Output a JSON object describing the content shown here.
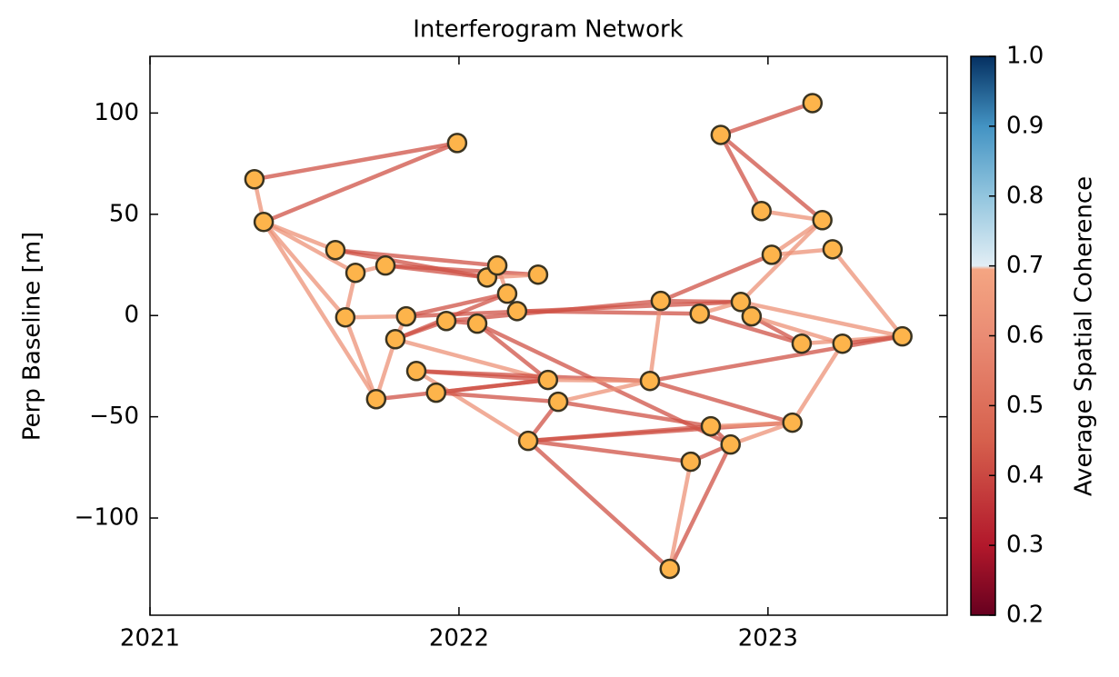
{
  "chart_data": {
    "type": "network",
    "title": "Interferogram Network",
    "y_label": "Perp Baseline [m]",
    "xlim": [
      2021,
      2023.58
    ],
    "ylim": [
      -148,
      128
    ],
    "xticks": [
      2021,
      2022,
      2023
    ],
    "yticks": [
      {
        "value": -100,
        "label": "−100"
      },
      {
        "value": -50,
        "label": "−50"
      },
      0,
      50,
      100
    ],
    "node_color": "#fdb44b",
    "nodes": {
      "x": [
        2021.338,
        2021.368,
        2021.994,
        2021.6,
        2021.665,
        2021.762,
        2021.632,
        2021.829,
        2021.794,
        2021.732,
        2021.862,
        2021.926,
        2021.959,
        2022.059,
        2022.091,
        2022.124,
        2022.156,
        2022.188,
        2022.256,
        2022.288,
        2022.321,
        2022.224,
        2022.653,
        2022.618,
        2022.779,
        2022.847,
        2022.979,
        2023.012,
        2022.912,
        2022.947,
        2023.144,
        2023.176,
        2023.209,
        2023.109,
        2023.241,
        2023.435,
        2023.079,
        2022.815,
        2022.879,
        2022.75,
        2022.682
      ],
      "y": [
        67.3,
        46.2,
        85.2,
        32.3,
        21.1,
        24.7,
        -0.9,
        -0.4,
        -11.7,
        -41.3,
        -27.4,
        -38.1,
        -2.7,
        -4.0,
        18.8,
        24.7,
        10.8,
        2.2,
        20.2,
        -31.8,
        -42.6,
        -61.9,
        7.2,
        -32.3,
        0.9,
        89.2,
        51.6,
        30.0,
        6.7,
        -0.4,
        104.9,
        47.1,
        32.7,
        -13.9,
        -13.9,
        -10.3,
        -52.9,
        -54.7,
        -63.7,
        -72.2,
        -125.1
      ]
    },
    "edges": {
      "source": [
        0,
        0,
        1,
        1,
        1,
        1,
        1,
        3,
        3,
        4,
        4,
        5,
        5,
        14,
        15,
        16,
        16,
        6,
        6,
        9,
        9,
        8,
        8,
        8,
        8,
        12,
        17,
        7,
        10,
        10,
        10,
        11,
        11,
        13,
        13,
        13,
        19,
        20,
        20,
        20,
        21,
        21,
        21,
        21,
        23,
        23,
        23,
        22,
        22,
        24,
        28,
        28,
        29,
        29,
        33,
        34,
        24,
        25,
        25,
        25,
        26,
        27,
        27,
        32,
        36,
        36,
        37,
        37,
        38,
        38,
        39
      ],
      "target": [
        2,
        1,
        2,
        3,
        4,
        6,
        9,
        15,
        14,
        5,
        6,
        14,
        18,
        18,
        16,
        17,
        7,
        7,
        9,
        8,
        19,
        7,
        16,
        12,
        19,
        22,
        24,
        28,
        19,
        23,
        21,
        20,
        19,
        19,
        12,
        38,
        23,
        23,
        21,
        37,
        37,
        39,
        36,
        40,
        22,
        35,
        36,
        27,
        28,
        28,
        31,
        35,
        33,
        34,
        35,
        35,
        33,
        30,
        26,
        31,
        31,
        31,
        32,
        35,
        34,
        38,
        36,
        38,
        39,
        40,
        40
      ],
      "coherence": [
        0.42,
        0.62,
        0.42,
        0.62,
        0.62,
        0.62,
        0.62,
        0.42,
        0.42,
        0.62,
        0.62,
        0.42,
        0.42,
        0.62,
        0.62,
        0.62,
        0.42,
        0.62,
        0.62,
        0.62,
        0.42,
        0.62,
        0.42,
        0.42,
        0.62,
        0.42,
        0.42,
        0.42,
        0.42,
        0.42,
        0.62,
        0.42,
        0.42,
        0.42,
        0.42,
        0.42,
        0.62,
        0.62,
        0.42,
        0.42,
        0.42,
        0.42,
        0.42,
        0.42,
        0.62,
        0.42,
        0.42,
        0.42,
        0.42,
        0.62,
        0.62,
        0.62,
        0.42,
        0.62,
        0.62,
        0.42,
        0.42,
        0.42,
        0.42,
        0.42,
        0.62,
        0.62,
        0.62,
        0.62,
        0.62,
        0.62,
        0.62,
        0.42,
        0.42,
        0.42,
        0.62
      ]
    },
    "colorbar": {
      "label": "Average Spatial Coherence",
      "lim": [
        0.2,
        1.0
      ],
      "ticks": [
        0.2,
        0.3,
        0.4,
        0.5,
        0.6,
        0.7,
        0.8,
        0.9,
        {
          "value": 1.0,
          "label": "1.0"
        }
      ],
      "stops": [
        {
          "value": 0.2,
          "color": "#67001f"
        },
        {
          "value": 0.3,
          "color": "#b2182b"
        },
        {
          "value": 0.45,
          "color": "#d6604d"
        },
        {
          "value": 0.6,
          "color": "#ea8c74"
        },
        {
          "value": 0.695,
          "color": "#f4a582"
        },
        {
          "value": 0.7,
          "color": "#e2eef5"
        },
        {
          "value": 0.8,
          "color": "#92c5de"
        },
        {
          "value": 0.9,
          "color": "#4393c3"
        },
        {
          "value": 1.0,
          "color": "#053061"
        }
      ]
    }
  }
}
